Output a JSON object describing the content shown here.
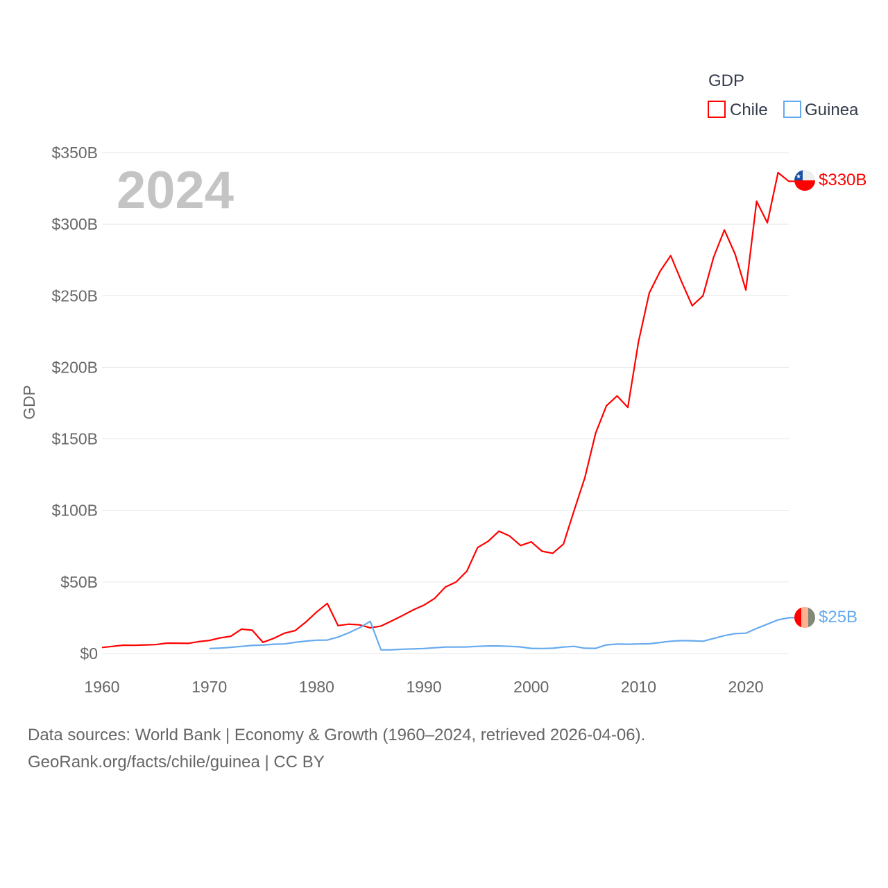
{
  "chart_data": {
    "type": "line",
    "title": "GDP",
    "year_label": "2024",
    "xlabel": "",
    "ylabel": "GDP",
    "xlim": [
      1960,
      2024
    ],
    "ylim": [
      0,
      350
    ],
    "x_ticks": [
      "1960",
      "1970",
      "1980",
      "1990",
      "2000",
      "2010",
      "2020"
    ],
    "y_ticks": [
      "$0",
      "$50B",
      "$100B",
      "$150B",
      "$200B",
      "$250B",
      "$300B",
      "$350B"
    ],
    "grid": true,
    "legend": {
      "title": "GDP",
      "position": "top-right",
      "entries": [
        "Chile",
        "Guinea"
      ]
    },
    "series": [
      {
        "name": "Chile",
        "color": "#ff0000",
        "start_year": 1960,
        "end_label": "$330B",
        "values": [
          4.2,
          5,
          5.8,
          5.7,
          6,
          6.2,
          7.2,
          7.2,
          7.1,
          8.3,
          9.1,
          10.9,
          12,
          17,
          16.3,
          7.8,
          10.6,
          14.2,
          16,
          22,
          29,
          35,
          19.5,
          20.5,
          20,
          18,
          19.2,
          22.8,
          26.5,
          30.5,
          33.8,
          38.5,
          46.5,
          50,
          57.5,
          74,
          78.5,
          85.5,
          82,
          75.5,
          78,
          71.5,
          70,
          76.5,
          100,
          123,
          154,
          173,
          180,
          172,
          218,
          252,
          267,
          278,
          260,
          243,
          250,
          277,
          296,
          279,
          254,
          316,
          301,
          336,
          330
        ]
      },
      {
        "name": "Guinea",
        "color": "#66aaee",
        "start_year": 1970,
        "end_label": "$25B",
        "values": [
          3.5,
          3.8,
          4.3,
          5,
          5.6,
          5.9,
          6.5,
          6.7,
          7.8,
          8.7,
          9.3,
          9.4,
          11.5,
          14.5,
          18,
          22.5,
          2.5,
          2.6,
          3,
          3.2,
          3.5,
          4,
          4.5,
          4.5,
          4.6,
          5,
          5.3,
          5.3,
          5,
          4.6,
          3.6,
          3.5,
          3.7,
          4.5,
          5,
          3.7,
          3.6,
          6,
          6.6,
          6.5,
          6.7,
          6.8,
          7.7,
          8.6,
          9,
          8.9,
          8.6,
          10.5,
          12.5,
          13.9,
          14.2,
          17.5,
          20.5,
          23.5,
          25
        ]
      }
    ]
  },
  "footer": {
    "line1": "Data sources: World Bank | Economy & Growth (1960–2024, retrieved 2026-04-06).",
    "line2": "GeoRank.org/facts/chile/guinea | CC BY"
  }
}
